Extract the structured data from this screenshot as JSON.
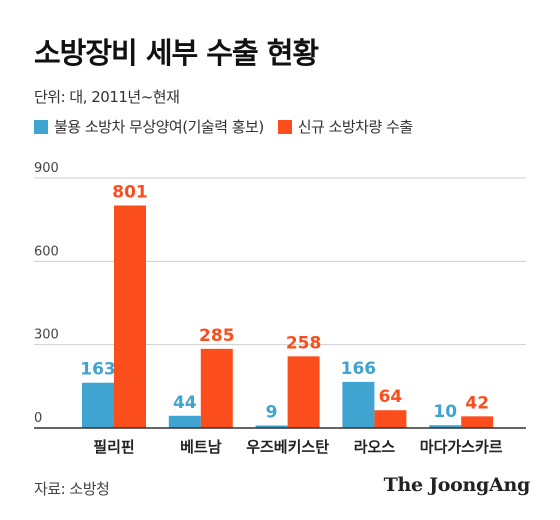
{
  "header": {
    "title": "소방장비 세부 수출 현황",
    "subtitle": "단위: 대, 2011년~현재"
  },
  "colors": {
    "series1": "#3fa4cf",
    "series2": "#fb4e1c",
    "grid": "#cfcfcf",
    "axis": "#333333"
  },
  "chart_data": {
    "type": "bar",
    "categories": [
      "필리핀",
      "베트남",
      "우즈베키스탄",
      "라오스",
      "마다가스카르"
    ],
    "series": [
      {
        "name": "불용 소방차 무상양여(기술력 홍보)",
        "values": [
          163,
          44,
          9,
          166,
          10
        ]
      },
      {
        "name": "신규 소방차량 수출",
        "values": [
          801,
          285,
          258,
          64,
          42
        ]
      }
    ],
    "yticks": [
      "0",
      "300",
      "600",
      "900"
    ],
    "ylim": [
      0,
      900
    ],
    "grid": true,
    "legend": "top-left"
  },
  "footer": {
    "source": "자료: 소방청",
    "logo": "The JoongAng"
  }
}
